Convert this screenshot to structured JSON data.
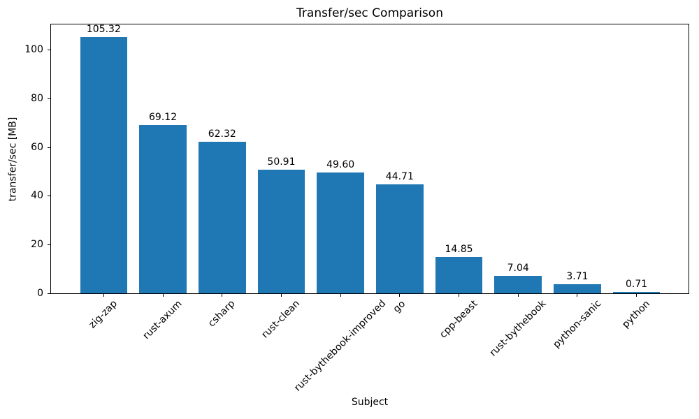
{
  "chart_data": {
    "type": "bar",
    "title": "Transfer/sec Comparison",
    "xlabel": "Subject",
    "ylabel": "transfer/sec [MB]",
    "categories": [
      "zig-zap",
      "rust-axum",
      "csharp",
      "rust-clean",
      "rust-bythebook-improved",
      "go",
      "cpp-beast",
      "rust-bythebook",
      "python-sanic",
      "python"
    ],
    "values": [
      105.32,
      69.12,
      62.32,
      50.91,
      49.6,
      44.71,
      14.85,
      7.04,
      3.71,
      0.71
    ],
    "value_labels": [
      "105.32",
      "69.12",
      "62.32",
      "50.91",
      "49.60",
      "44.71",
      "14.85",
      "7.04",
      "3.71",
      "0.71"
    ],
    "yticks": [
      0,
      20,
      40,
      60,
      80,
      100
    ],
    "ylim": [
      0,
      110.59
    ],
    "bar_color": "#1f77b4",
    "bar_width_fraction": 0.8,
    "grid": false,
    "legend": null,
    "xtick_rotation_deg": 45
  }
}
